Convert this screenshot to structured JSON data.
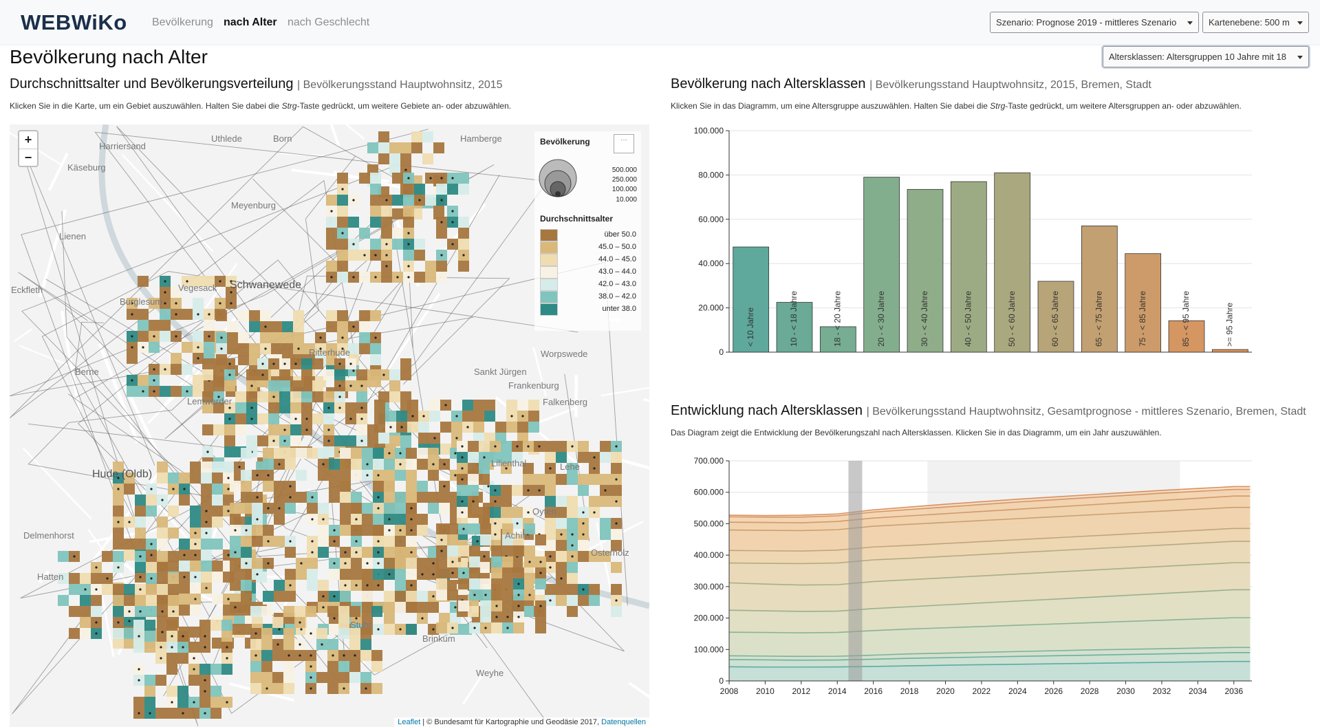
{
  "nav": {
    "brand": "WEBWiKo",
    "links": [
      {
        "label": "Bevölkerung",
        "active": false
      },
      {
        "label": "nach Alter",
        "active": true
      },
      {
        "label": "nach Geschlecht",
        "active": false
      }
    ],
    "scenario_dropdown": "Szenario: Prognose 2019 - mittleres Szenario",
    "map_level_dropdown": "Kartenebene: 500 m"
  },
  "page": {
    "title": "Bevölkerung nach Alter",
    "age_class_dropdown": "Altersklassen: Altersgruppen 10 Jahre mit 18"
  },
  "map_section": {
    "title": "Durchschnittsalter und Bevölkerungsverteilung",
    "subtitle": "| Bevölkerungsstand Hauptwohnsitz, 2015",
    "hint_before": "Klicken Sie in die Karte, um ein Gebiet auszuwählen. Halten Sie dabei die ",
    "hint_key": "Strg",
    "hint_after": "-Taste gedrückt, um weitere Gebiete an- oder abzuwählen.",
    "zoom_in": "+",
    "zoom_out": "−",
    "legend": {
      "population_title": "Bevölkerung",
      "size_labels": [
        "500.000",
        "250.000",
        "100.000",
        "10.000"
      ],
      "age_title": "Durchschnittsalter",
      "classes": [
        {
          "label": "über 50.0",
          "color": "#a6773f"
        },
        {
          "label": "45.0 – 50.0",
          "color": "#d9b87a"
        },
        {
          "label": "44.0 – 45.0",
          "color": "#efdcb0"
        },
        {
          "label": "43.0 – 44.0",
          "color": "#f8f1e4"
        },
        {
          "label": "42.0 – 43.0",
          "color": "#d6ece9"
        },
        {
          "label": "38.0 – 42.0",
          "color": "#7fc4bd"
        },
        {
          "label": "unter 38.0",
          "color": "#2e8a84"
        }
      ]
    },
    "places": [
      {
        "name": "Uthlede"
      },
      {
        "name": "Born"
      },
      {
        "name": "Hamberge"
      },
      {
        "name": "Harriersand"
      },
      {
        "name": "Käseburg"
      },
      {
        "name": "Meyenburg"
      },
      {
        "name": "Lienen"
      },
      {
        "name": "Schwanewede"
      },
      {
        "name": "Eckfleth"
      },
      {
        "name": "Berne"
      },
      {
        "name": "Vegesack"
      },
      {
        "name": "Burglesum"
      },
      {
        "name": "Lemwerder"
      },
      {
        "name": "Sankt Jürgen"
      },
      {
        "name": "Frankenburg"
      },
      {
        "name": "Falkenberg"
      },
      {
        "name": "Lilienthal"
      },
      {
        "name": "Osterholz"
      },
      {
        "name": "Ritterhude"
      },
      {
        "name": "Worpswede"
      },
      {
        "name": "Hude (Oldb)"
      },
      {
        "name": "Delmenhorst"
      },
      {
        "name": "Hatten"
      },
      {
        "name": "Stuhr"
      },
      {
        "name": "Brinkum"
      },
      {
        "name": "Weyhe"
      },
      {
        "name": "Achim"
      },
      {
        "name": "Oyten"
      },
      {
        "name": "Lehe"
      }
    ],
    "attribution": {
      "leaflet": "Leaflet",
      "text": " | © Bundesamt für Kartographie und Geodäsie 2017, ",
      "sources": "Datenquellen"
    }
  },
  "bar_section": {
    "title": "Bevölkerung nach Altersklassen",
    "subtitle": "| Bevölkerungsstand Hauptwohnsitz, 2015, Bremen, Stadt",
    "hint_before": "Klicken Sie in das Diagramm, um eine Altersgruppe auszuwählen. Halten Sie dabei die ",
    "hint_key": "Strg",
    "hint_after": "-Taste gedrückt, um weitere Altersgruppen an- oder abzuwählen."
  },
  "area_section": {
    "title": "Entwicklung nach Altersklassen",
    "subtitle": "| Bevölkerungsstand Hauptwohnsitz, Gesamtprognose - mittleres Szenario, Bremen, Stadt",
    "hint_before": "Das Diagram zeigt die Entwicklung der Bevölkerungszahl nach Altersklassen. ",
    "hint_after": "Klicken Sie in das Diagramm, um ein Jahr auszuwählen."
  },
  "chart_data": [
    {
      "type": "bar",
      "title": "Bevölkerung nach Altersklassen",
      "categories": [
        "< 10 Jahre",
        "10 - < 18 Jahre",
        "18 - < 20 Jahre",
        "20 - < 30 Jahre",
        "30 - < 40 Jahre",
        "40 - < 50 Jahre",
        "50 - < 60 Jahre",
        "60 - < 65 Jahre",
        "65 - < 75 Jahre",
        "75 - < 85 Jahre",
        "85 - < 95 Jahre",
        ">= 95 Jahre"
      ],
      "values": [
        47500,
        22500,
        11500,
        79000,
        73500,
        77000,
        81000,
        32000,
        57000,
        44500,
        14200,
        1200
      ],
      "colors": [
        "#5fa89c",
        "#6aaa97",
        "#76ad93",
        "#83ae8e",
        "#90ad89",
        "#9dab84",
        "#aaa87e",
        "#b7a478",
        "#c3a071",
        "#cd9b69",
        "#d59661",
        "#dc9358"
      ],
      "ylim": [
        0,
        100000
      ],
      "yticks": [
        "0",
        "20.000",
        "40.000",
        "60.000",
        "80.000",
        "100.000"
      ],
      "grid": true
    },
    {
      "type": "area",
      "title": "Entwicklung nach Altersklassen",
      "x": [
        2008,
        2010,
        2012,
        2014,
        2016,
        2018,
        2020,
        2022,
        2024,
        2026,
        2028,
        2030,
        2032,
        2034,
        2036
      ],
      "xticks": [
        "2008",
        "2010",
        "2012",
        "2014",
        "2016",
        "2018",
        "2020",
        "2022",
        "2024",
        "2026",
        "2028",
        "2030",
        "2032",
        "2034",
        "2036"
      ],
      "xlim": [
        2008,
        2037
      ],
      "ylim": [
        0,
        700000
      ],
      "yticks": [
        "0",
        "100.000",
        "200.000",
        "300.000",
        "400.000",
        "500.000",
        "600.000",
        "700.000"
      ],
      "selected_year": 2015,
      "forecast_band": [
        2019,
        2033
      ],
      "stacked_totals": [
        [
          45000,
          44000,
          44000,
          44500,
          46000,
          48000,
          50000,
          51500,
          53000,
          54500,
          56000,
          57500,
          59000,
          60500,
          62000
        ],
        [
          68000,
          67000,
          66000,
          66500,
          69000,
          72000,
          74000,
          76000,
          78000,
          80000,
          82000,
          84000,
          86000,
          88000,
          90000
        ],
        [
          80000,
          79000,
          78000,
          78500,
          82000,
          86000,
          88500,
          91000,
          93500,
          96000,
          98500,
          100500,
          102500,
          104500,
          106500
        ],
        [
          155000,
          154000,
          153000,
          154000,
          160000,
          165000,
          169000,
          173000,
          177000,
          181000,
          185000,
          189000,
          193000,
          197000,
          201000
        ],
        [
          225000,
          223000,
          221000,
          222000,
          230000,
          236000,
          242000,
          248000,
          254000,
          260000,
          266000,
          272000,
          278000,
          284000,
          290000
        ],
        [
          312000,
          308000,
          305000,
          306000,
          316000,
          322000,
          328000,
          334000,
          340000,
          346000,
          352000,
          358000,
          364000,
          370000,
          376000
        ],
        [
          375000,
          374000,
          373000,
          375000,
          385000,
          390000,
          396000,
          402000,
          408000,
          414000,
          420000,
          426000,
          432000,
          438000,
          444000
        ],
        [
          415000,
          414000,
          413000,
          416000,
          426000,
          431000,
          437000,
          443000,
          449000,
          455000,
          461000,
          467000,
          473000,
          479000,
          485000
        ],
        [
          480000,
          479000,
          478000,
          481000,
          492000,
          498000,
          504000,
          510000,
          516000,
          522000,
          528000,
          534000,
          540000,
          546000,
          552000
        ],
        [
          505000,
          504000,
          503000,
          507000,
          518000,
          525000,
          532000,
          539000,
          546000,
          553000,
          560000,
          567000,
          574000,
          581000,
          588000
        ],
        [
          522000,
          521000,
          521000,
          525000,
          537000,
          545000,
          553000,
          561000,
          569000,
          576000,
          583000,
          590000,
          597000,
          603000,
          609000
        ],
        [
          527000,
          526000,
          527000,
          531000,
          544000,
          553000,
          562000,
          570000,
          578000,
          585000,
          592000,
          599000,
          606000,
          612000,
          618000
        ]
      ]
    }
  ]
}
